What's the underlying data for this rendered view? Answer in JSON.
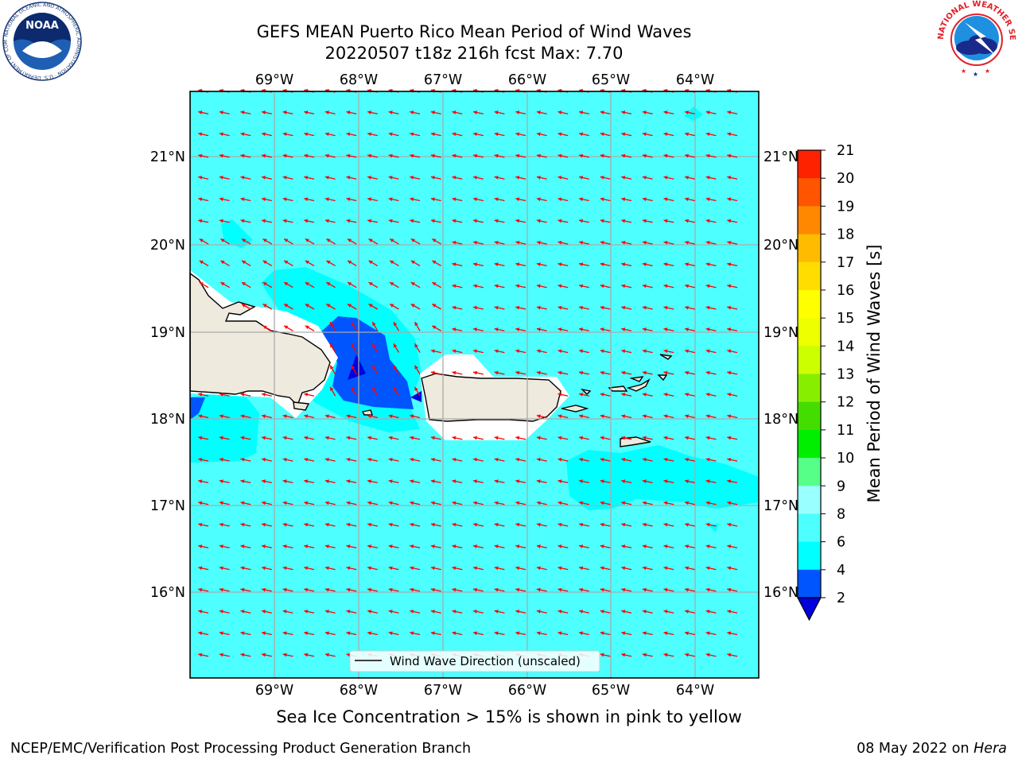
{
  "title": {
    "line1": "GEFS MEAN Puerto Rico Mean Period of Wind Waves",
    "line2": "20220507 t18z 216h fcst   Max: 7.70"
  },
  "map": {
    "lon_labels": [
      "69°W",
      "68°W",
      "67°W",
      "66°W",
      "65°W",
      "64°W"
    ],
    "lat_labels": [
      "21°N",
      "20°N",
      "19°N",
      "18°N",
      "17°N",
      "16°N"
    ],
    "legend_label": "Wind Wave Direction (unscaled)",
    "arrow_color": "#ff0000",
    "ocean_color": "#4dffff",
    "land_color": "#eeeadd"
  },
  "colorbar": {
    "label": "Mean Period of Wind Waves [s]",
    "ticks": [
      "2",
      "4",
      "6",
      "8",
      "9",
      "10",
      "11",
      "12",
      "13",
      "14",
      "15",
      "16",
      "17",
      "18",
      "19",
      "20",
      "21"
    ],
    "colors": [
      "#0055ff",
      "#00ffff",
      "#4dffff",
      "#99ffff",
      "#55ff88",
      "#00ee00",
      "#44dd00",
      "#88ee00",
      "#ccff00",
      "#eeff00",
      "#ffff00",
      "#ffdd00",
      "#ffbb00",
      "#ff8800",
      "#ff5500",
      "#ff2200"
    ],
    "under_color": "#0000dd"
  },
  "caption": "Sea Ice Concentration > 15% is shown in pink to yellow",
  "footer": {
    "left": "NCEP/EMC/Verification Post Processing Product Generation Branch",
    "date": "08 May 2022 on ",
    "machine": "Hera"
  },
  "logos": {
    "noaa": "NOAA",
    "noaa_ring": "NATIONAL OCEANIC AND ATMOSPHERIC ADMINISTRATION · U.S. DEPARTMENT OF COMMERCE",
    "nws_ring": "NATIONAL WEATHER SERVICE"
  }
}
